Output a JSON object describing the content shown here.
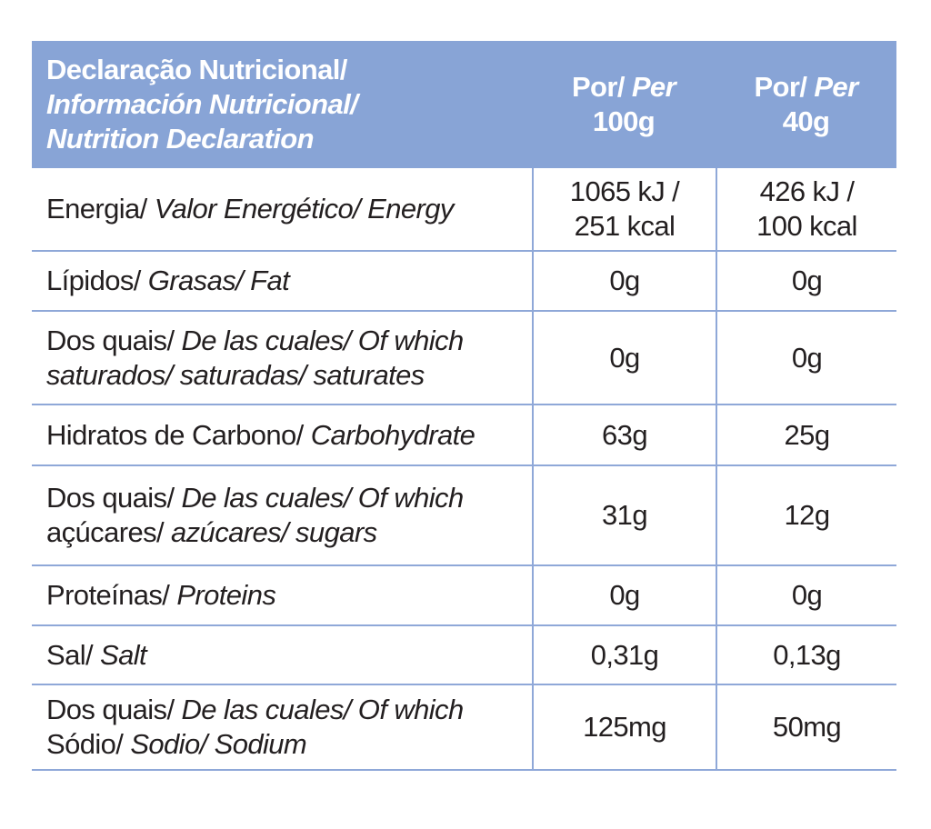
{
  "table": {
    "header": [
      [
        [
          {
            "text": "Declaração Nutricional/",
            "italic": false
          }
        ],
        [
          {
            "text": "Información Nutricional/",
            "italic": true
          }
        ],
        [
          {
            "text": "Nutrition Declaration",
            "italic": true
          }
        ]
      ],
      [
        [
          {
            "text": "Por/ ",
            "italic": false
          },
          {
            "text": "Per",
            "italic": true
          }
        ],
        [
          {
            "text": "100g",
            "italic": false
          }
        ]
      ],
      [
        [
          {
            "text": "Por/ ",
            "italic": false
          },
          {
            "text": "Per",
            "italic": true
          }
        ],
        [
          {
            "text": "40g",
            "italic": false
          }
        ]
      ]
    ],
    "rows": [
      [
        [
          [
            {
              "text": "Energia/ ",
              "italic": false
            },
            {
              "text": "Valor Energético/ Energy",
              "italic": true
            }
          ]
        ],
        [
          [
            {
              "text": "1065 kJ /",
              "italic": false
            }
          ],
          [
            {
              "text": "251 kcal",
              "italic": false
            }
          ]
        ],
        [
          [
            {
              "text": "426 kJ /",
              "italic": false
            }
          ],
          [
            {
              "text": "100 kcal",
              "italic": false
            }
          ]
        ]
      ],
      [
        [
          [
            {
              "text": "Lípidos/ ",
              "italic": false
            },
            {
              "text": "Grasas/ Fat",
              "italic": true
            }
          ]
        ],
        [
          [
            {
              "text": "0g",
              "italic": false
            }
          ]
        ],
        [
          [
            {
              "text": "0g",
              "italic": false
            }
          ]
        ]
      ],
      [
        [
          [
            {
              "text": "Dos quais/ ",
              "italic": false
            },
            {
              "text": "De las cuales/ Of which",
              "italic": true
            }
          ],
          [
            {
              "text": "saturados/ saturadas/ saturates",
              "italic": true
            }
          ]
        ],
        [
          [
            {
              "text": "0g",
              "italic": false
            }
          ]
        ],
        [
          [
            {
              "text": "0g",
              "italic": false
            }
          ]
        ]
      ],
      [
        [
          [
            {
              "text": "Hidratos de Carbono/ ",
              "italic": false
            },
            {
              "text": "Carbohydrate",
              "italic": true
            }
          ]
        ],
        [
          [
            {
              "text": "63g",
              "italic": false
            }
          ]
        ],
        [
          [
            {
              "text": "25g",
              "italic": false
            }
          ]
        ]
      ],
      [
        [
          [
            {
              "text": "Dos quais/ ",
              "italic": false
            },
            {
              "text": "De las cuales/ Of which",
              "italic": true
            }
          ],
          [
            {
              "text": "açúcares/ ",
              "italic": false
            },
            {
              "text": "azúcares/ sugars",
              "italic": true
            }
          ]
        ],
        [
          [
            {
              "text": "31g",
              "italic": false
            }
          ]
        ],
        [
          [
            {
              "text": "12g",
              "italic": false
            }
          ]
        ]
      ],
      [
        [
          [
            {
              "text": "Proteínas/ ",
              "italic": false
            },
            {
              "text": "Proteins",
              "italic": true
            }
          ]
        ],
        [
          [
            {
              "text": "0g",
              "italic": false
            }
          ]
        ],
        [
          [
            {
              "text": "0g",
              "italic": false
            }
          ]
        ]
      ],
      [
        [
          [
            {
              "text": "Sal/ ",
              "italic": false
            },
            {
              "text": "Salt",
              "italic": true
            }
          ]
        ],
        [
          [
            {
              "text": "0,31g",
              "italic": false
            }
          ]
        ],
        [
          [
            {
              "text": "0,13g",
              "italic": false
            }
          ]
        ]
      ],
      [
        [
          [
            {
              "text": "Dos quais/ ",
              "italic": false
            },
            {
              "text": "De las cuales/ Of which",
              "italic": true
            }
          ],
          [
            {
              "text": "Sódio/ ",
              "italic": false
            },
            {
              "text": "Sodio/ Sodium",
              "italic": true
            }
          ]
        ],
        [
          [
            {
              "text": "125mg",
              "italic": false
            }
          ]
        ],
        [
          [
            {
              "text": "50mg",
              "italic": false
            }
          ]
        ]
      ]
    ]
  }
}
